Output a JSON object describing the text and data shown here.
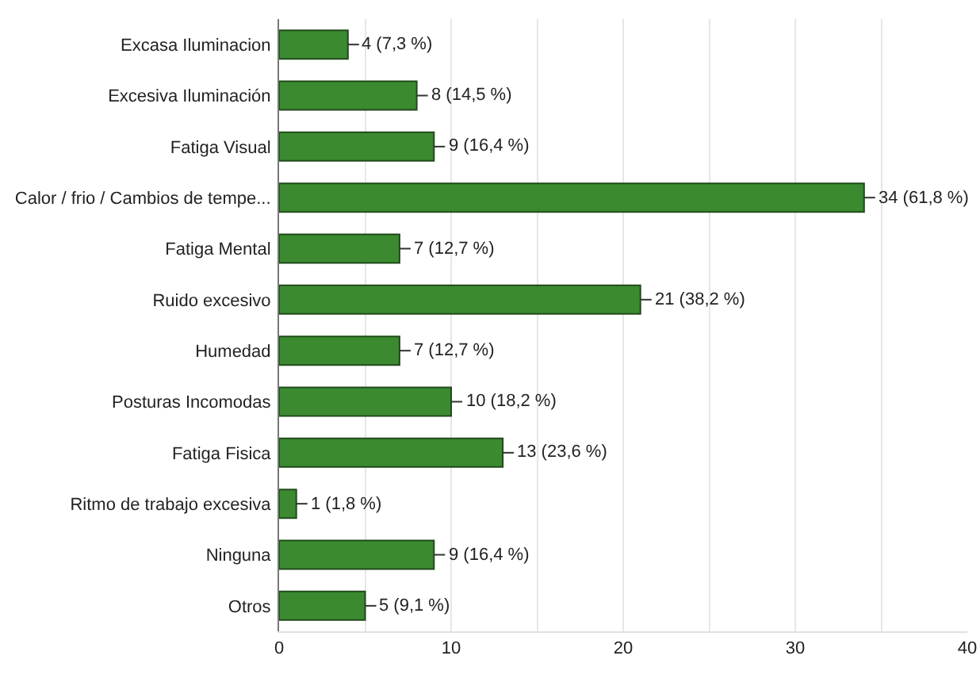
{
  "chart_data": {
    "type": "bar",
    "orientation": "horizontal",
    "categories": [
      "Excasa Iluminacion",
      "Excesiva Iluminación",
      "Fatiga Visual",
      "Calor / frio / Cambios de tempe...",
      "Fatiga Mental",
      "Ruido excesivo",
      "Humedad",
      "Posturas Incomodas",
      "Fatiga Fisica",
      "Ritmo de trabajo excesiva",
      "Ninguna",
      "Otros"
    ],
    "values": [
      4,
      8,
      9,
      34,
      7,
      21,
      7,
      10,
      13,
      1,
      9,
      5
    ],
    "value_labels": [
      "4 (7,3 %)",
      "8 (14,5 %)",
      "9 (16,4 %)",
      "34 (61,8 %)",
      "7 (12,7 %)",
      "21 (38,2 %)",
      "7 (12,7 %)",
      "10 (18,2 %)",
      "13 (23,6 %)",
      "1 (1,8 %)",
      "9 (16,4 %)",
      "5 (9,1 %)"
    ],
    "color": "#3b8a30",
    "xlim": [
      0,
      40
    ],
    "xticks": [
      0,
      {
        "value": 5,
        "label": null
      },
      10,
      {
        "value": 15,
        "label": null
      },
      20,
      {
        "value": 25,
        "label": null
      },
      30,
      {
        "value": 35,
        "label": null
      },
      40
    ],
    "grid": "x"
  }
}
